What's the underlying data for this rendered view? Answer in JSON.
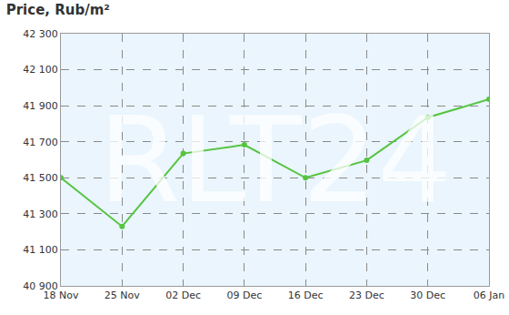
{
  "chart_data": {
    "type": "line",
    "title": "Price, Rub/m²",
    "categories": [
      "18 Nov",
      "25 Nov",
      "02 Dec",
      "09 Dec",
      "16 Dec",
      "23 Dec",
      "30 Dec",
      "06 Jan"
    ],
    "values": [
      41500,
      41230,
      41635,
      41683,
      41500,
      41597,
      41835,
      41936
    ],
    "color": "#55c43f",
    "marker": "circle",
    "ylim": [
      40900,
      42300
    ],
    "yticks": [
      {
        "value": 40900,
        "label": "40 900"
      },
      {
        "value": 41100,
        "label": "41 100"
      },
      {
        "value": 41300,
        "label": "41 300"
      },
      {
        "value": 41500,
        "label": "41 500"
      },
      {
        "value": 41700,
        "label": "41 700"
      },
      {
        "value": 41900,
        "label": "41 900"
      },
      {
        "value": 42100,
        "label": "42 100"
      },
      {
        "value": 42300,
        "label": "42 300"
      }
    ],
    "grid": true,
    "annotations": [
      {
        "text": "RLT24"
      }
    ]
  }
}
